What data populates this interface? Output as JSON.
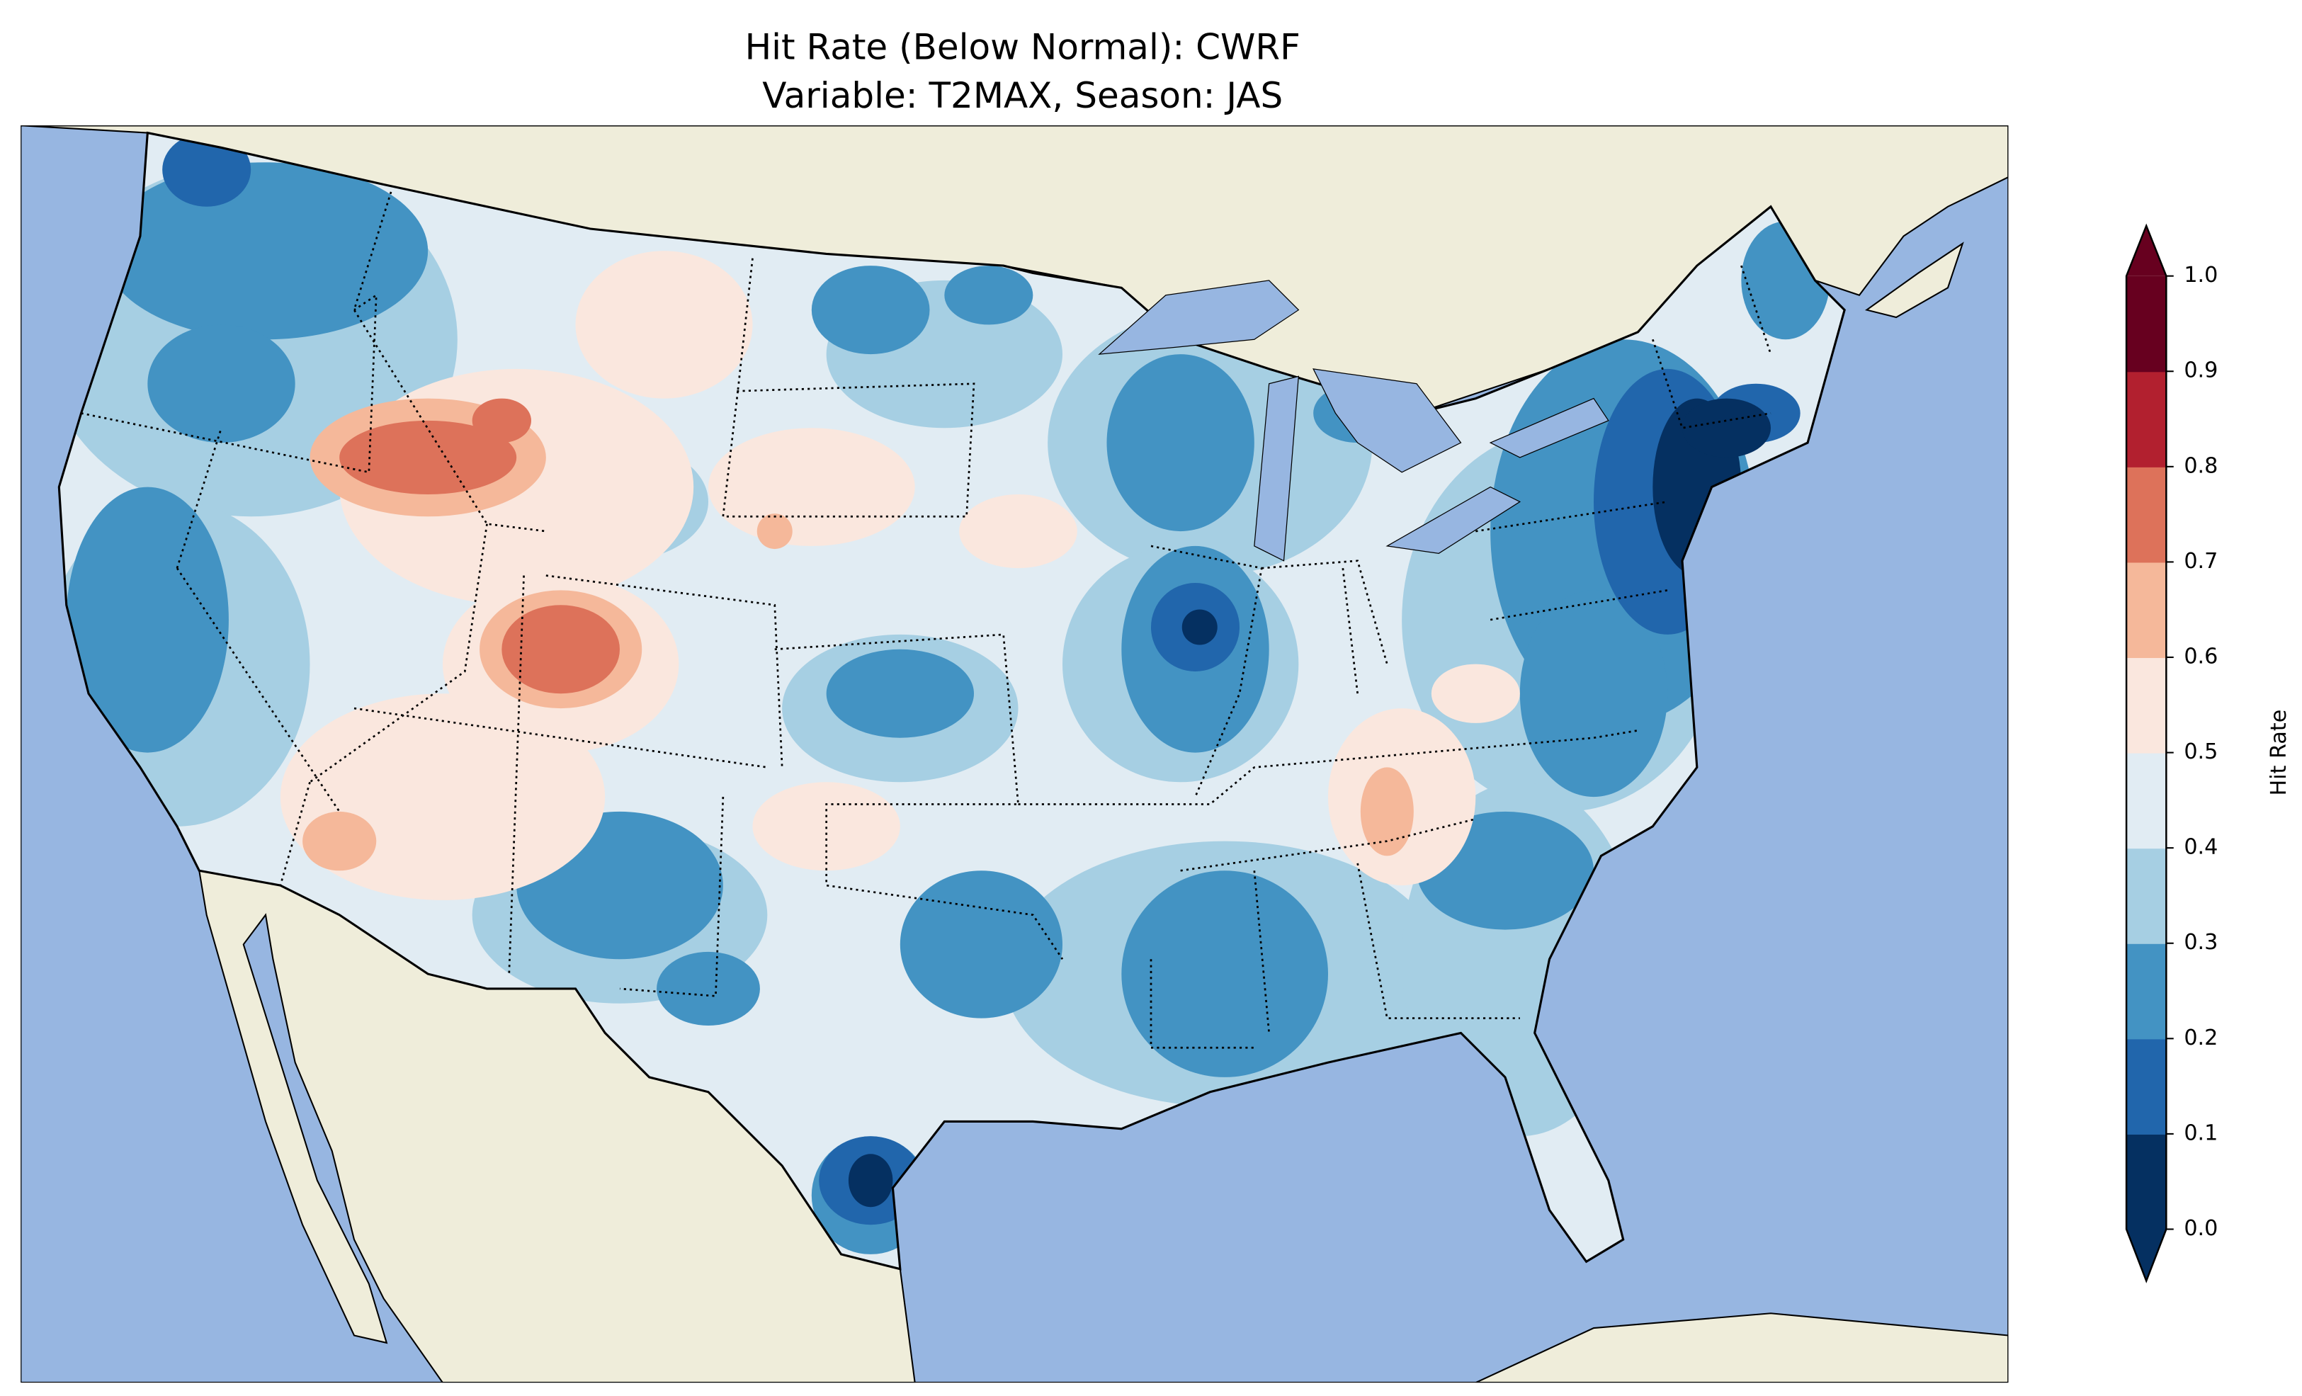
{
  "title": {
    "line1": "Hit Rate (Below Normal): CWRF",
    "line2": "Variable: T2MAX, Season: JAS"
  },
  "map": {
    "ocean_color": "#97b6e1",
    "land_color": "#efedda",
    "region": "Contiguous United States"
  },
  "colorbar": {
    "label": "Hit Rate",
    "ticks": [
      "0.0",
      "0.1",
      "0.2",
      "0.3",
      "0.4",
      "0.5",
      "0.6",
      "0.7",
      "0.8",
      "0.9",
      "1.0"
    ],
    "bounds": [
      0.0,
      1.0
    ],
    "extend": "both",
    "colors": [
      "#053061",
      "#2166ac",
      "#4393c3",
      "#a6cfe3",
      "#e1ecf3",
      "#fae7de",
      "#f5b89a",
      "#dd725a",
      "#b2202f",
      "#67001f"
    ]
  }
}
